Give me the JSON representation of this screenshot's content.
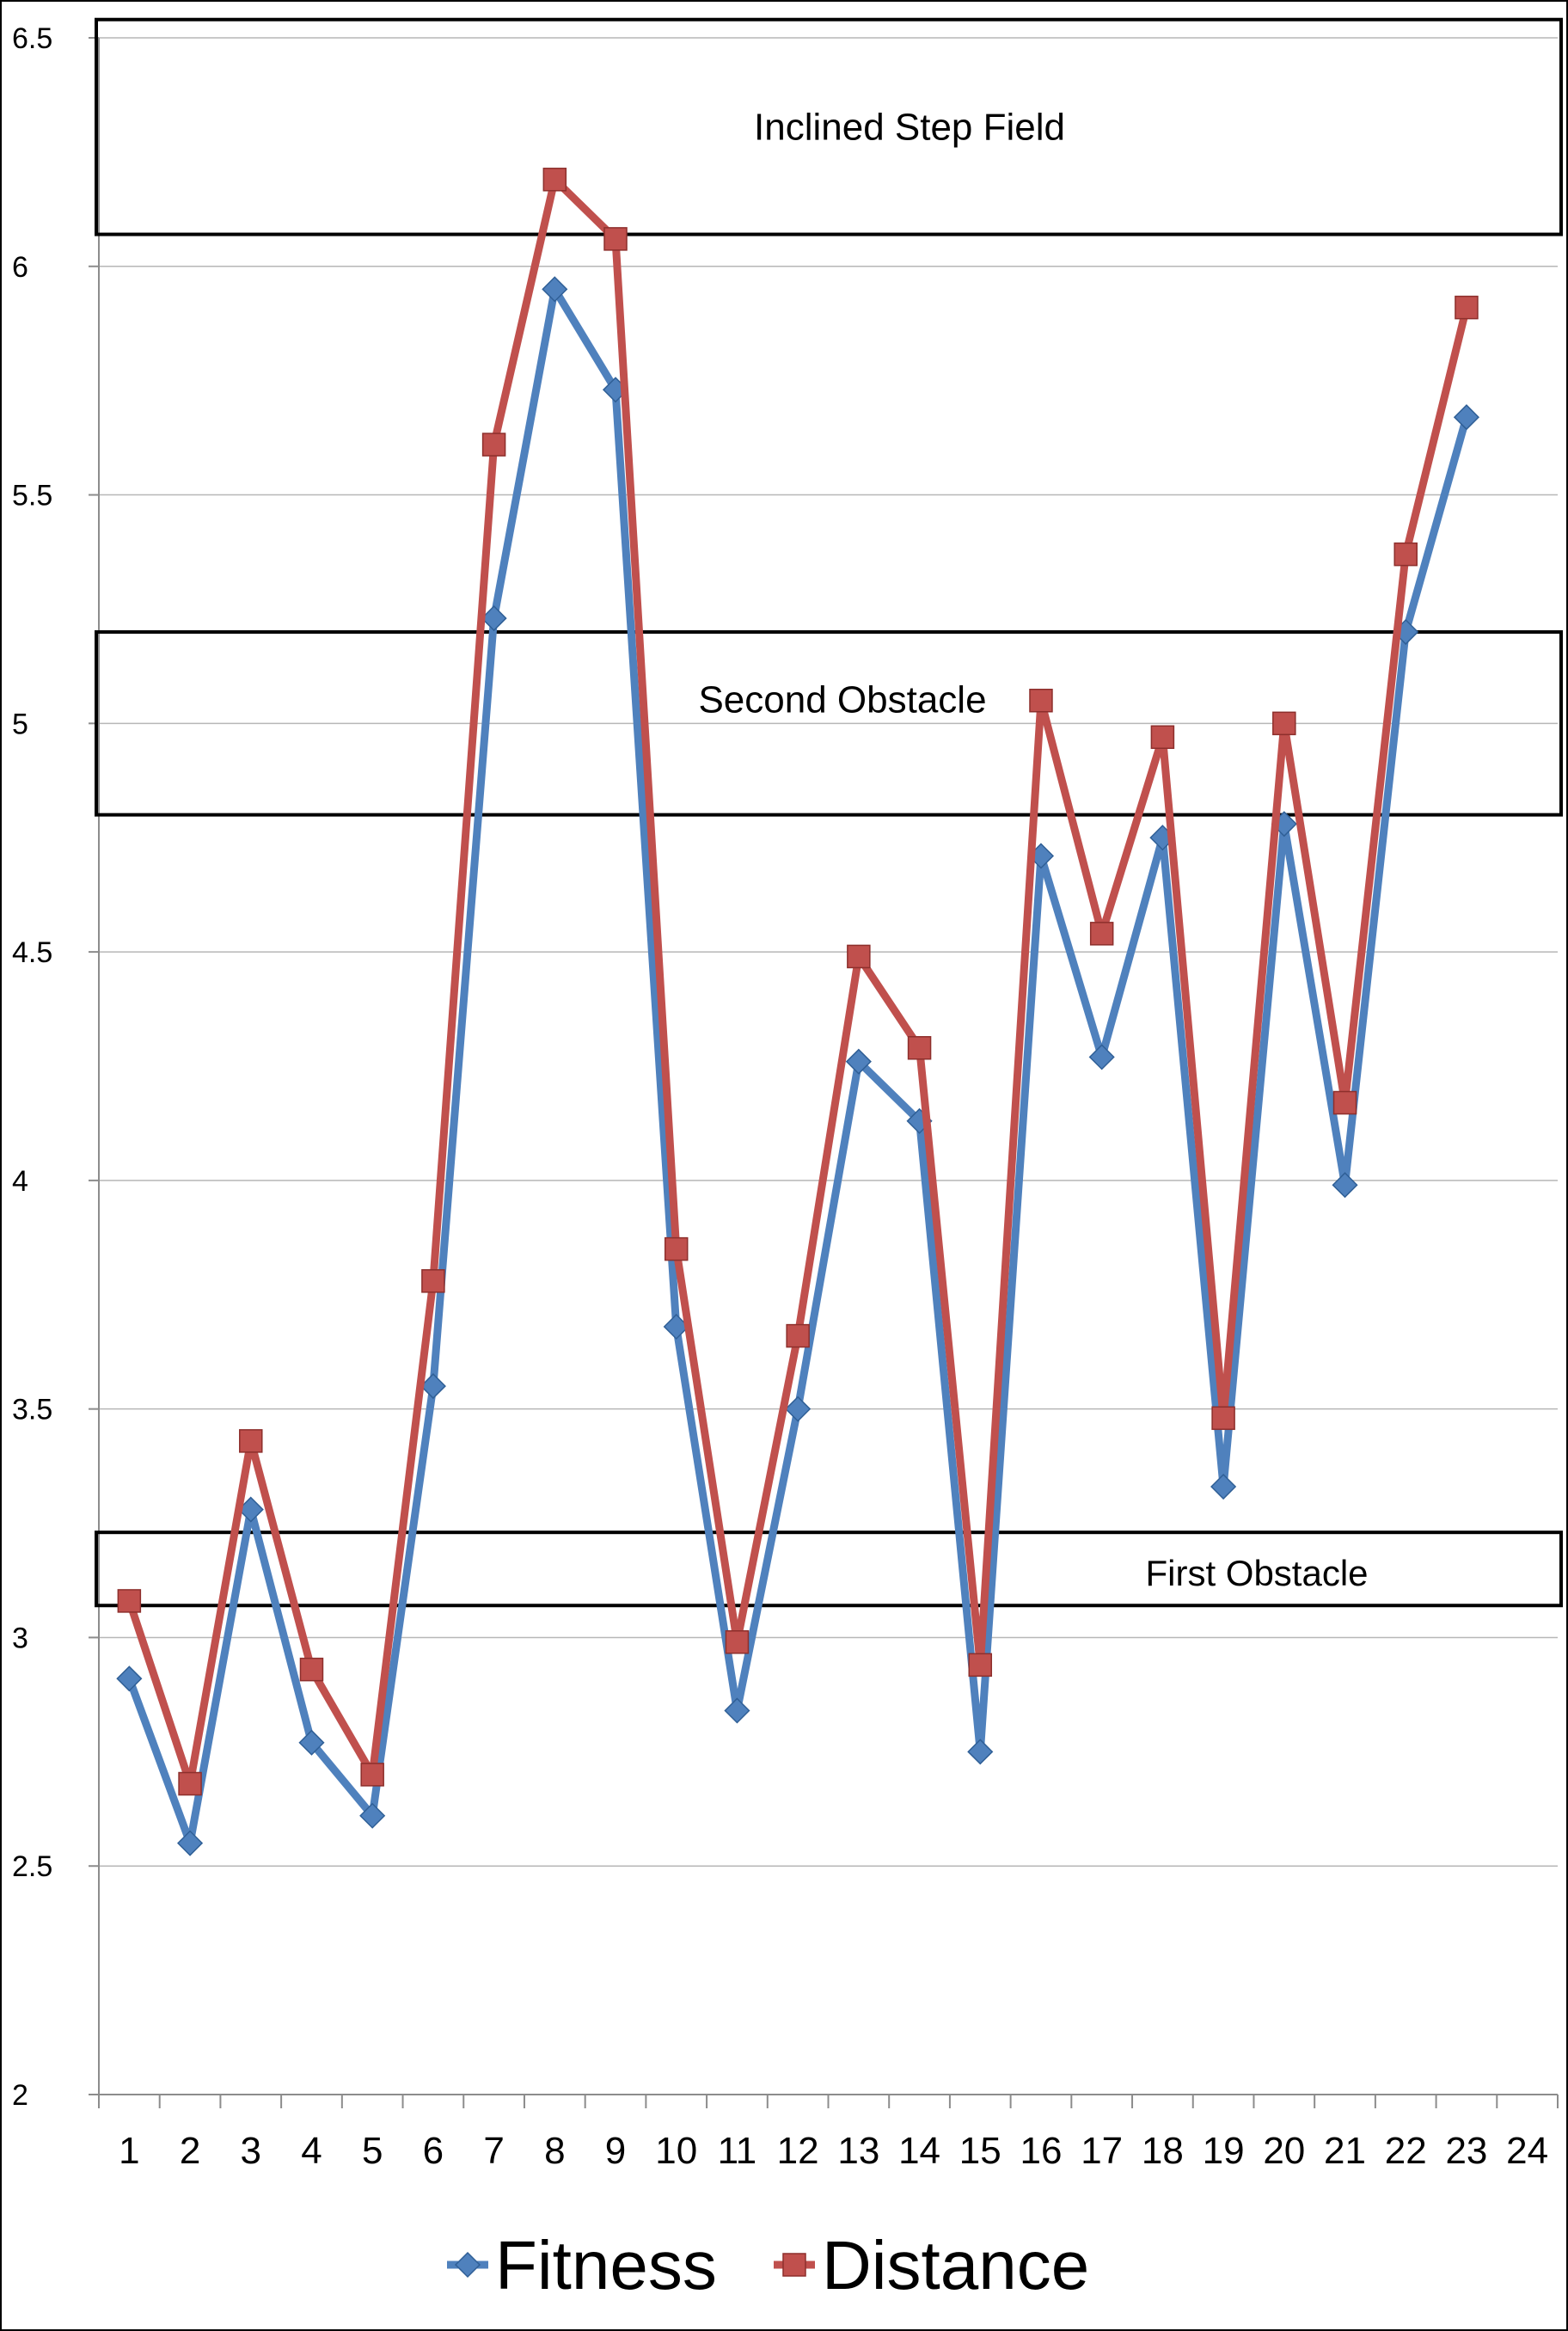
{
  "chart_data": {
    "type": "line",
    "title": "",
    "xlabel": "",
    "ylabel": "",
    "x": [
      "1",
      "2",
      "3",
      "4",
      "5",
      "6",
      "7",
      "8",
      "9",
      "10",
      "11",
      "12",
      "13",
      "14",
      "15",
      "16",
      "17",
      "18",
      "19",
      "20",
      "21",
      "22",
      "23",
      "24"
    ],
    "ylim": [
      2,
      6.5
    ],
    "yticks": [
      "2",
      "2.5",
      "3",
      "3.5",
      "4",
      "4.5",
      "5",
      "5.5",
      "6",
      "6.5"
    ],
    "grid": "horizontal",
    "legend": "bottom",
    "series": [
      {
        "name": "Fitness",
        "color": "#4f81bd",
        "marker": "diamond",
        "values": [
          2.91,
          2.55,
          3.28,
          2.77,
          2.61,
          3.55,
          5.23,
          5.95,
          5.73,
          3.68,
          2.84,
          3.5,
          4.26,
          4.13,
          2.75,
          4.71,
          4.27,
          4.75,
          3.33,
          4.78,
          3.99,
          5.2,
          5.67,
          null
        ]
      },
      {
        "name": "Distance",
        "color": "#c0504d",
        "marker": "square",
        "values": [
          3.08,
          2.68,
          3.43,
          2.93,
          2.7,
          3.78,
          5.61,
          6.19,
          6.06,
          3.85,
          2.99,
          3.66,
          4.49,
          4.29,
          2.94,
          5.05,
          4.54,
          4.97,
          3.48,
          5.0,
          4.17,
          5.37,
          5.91,
          null
        ]
      }
    ],
    "annotations": [
      {
        "label": "Inclined Step Field",
        "y_range": [
          6.07,
          6.54
        ]
      },
      {
        "label": "Second Obstacle",
        "y_range": [
          4.8,
          5.2
        ]
      },
      {
        "label": "First Obstacle",
        "y_range": [
          3.07,
          3.23
        ]
      }
    ]
  }
}
